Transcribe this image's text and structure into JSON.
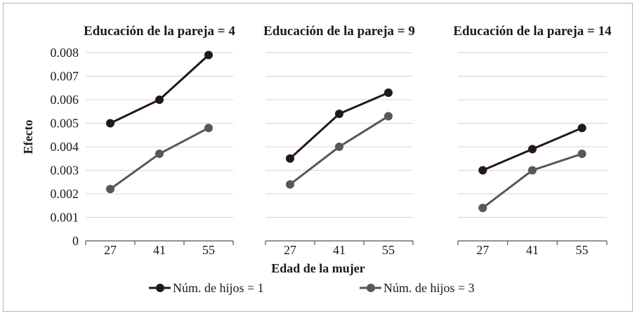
{
  "chart_data": {
    "type": "line",
    "ylabel": "Efecto",
    "xlabel": "Edad de la mujer",
    "ylim": [
      0,
      0.008
    ],
    "yticks": [
      "0",
      "0.001",
      "0.002",
      "0.003",
      "0.004",
      "0.005",
      "0.006",
      "0.007",
      "0.008"
    ],
    "categories": [
      "27",
      "41",
      "55"
    ],
    "grid": "horizontal",
    "legend": [
      {
        "label": "Núm. de hijos = 1",
        "color": "#231815"
      },
      {
        "label": "Núm. de hijos = 3",
        "color": "#595757"
      }
    ],
    "panels": [
      {
        "title": "Educación de la pareja = 4",
        "series": [
          {
            "name": "Núm. de hijos = 1",
            "values": [
              0.005,
              0.006,
              0.0079
            ]
          },
          {
            "name": "Núm. de hijos = 3",
            "values": [
              0.0022,
              0.0037,
              0.0048
            ]
          }
        ]
      },
      {
        "title": "Educación de la pareja = 9",
        "series": [
          {
            "name": "Núm. de hijos = 1",
            "values": [
              0.0035,
              0.0054,
              0.0063
            ]
          },
          {
            "name": "Núm. de hijos = 3",
            "values": [
              0.0024,
              0.004,
              0.0053
            ]
          }
        ]
      },
      {
        "title": "Educación de la pareja = 14",
        "series": [
          {
            "name": "Núm. de hijos = 1",
            "values": [
              0.003,
              0.0039,
              0.0048
            ]
          },
          {
            "name": "Núm. de hijos = 3",
            "values": [
              0.0014,
              0.003,
              0.0037
            ]
          }
        ]
      }
    ]
  }
}
